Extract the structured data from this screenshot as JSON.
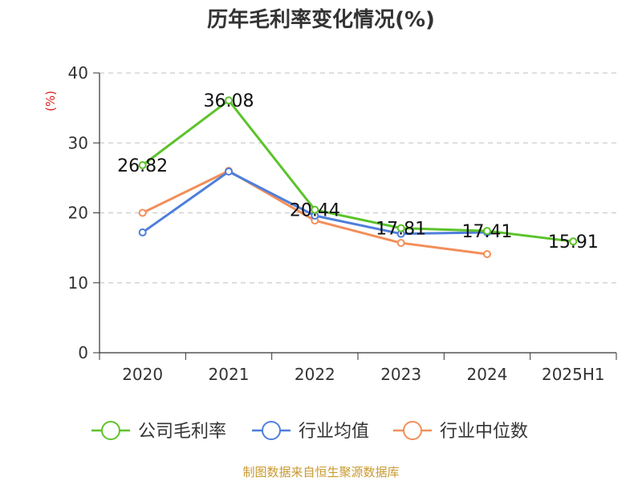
{
  "title": "历年毛利率变化情况(%)",
  "footer": "制图数据来自恒生聚源数据库",
  "chart_data": {
    "type": "line",
    "title": "历年毛利率变化情况(%)",
    "ylabel": "(%)",
    "xlabel": "",
    "categories": [
      "2020",
      "2021",
      "2022",
      "2023",
      "2024",
      "2025H1"
    ],
    "ylim": [
      0,
      40
    ],
    "yticks": [
      0,
      10,
      20,
      30,
      40
    ],
    "grid": true,
    "legend_position": "bottom",
    "series": [
      {
        "name": "公司毛利率",
        "color": "#5cc32b",
        "values": [
          26.82,
          36.08,
          20.44,
          17.81,
          17.41,
          15.91
        ],
        "labels": [
          "26.82",
          "36.08",
          "20.44",
          "17.81",
          "17.41",
          "15.91"
        ]
      },
      {
        "name": "行业均值",
        "color": "#4f7fdb",
        "values": [
          17.2,
          25.9,
          19.6,
          17.0,
          17.2,
          null
        ]
      },
      {
        "name": "行业中位数",
        "color": "#f28f5a",
        "values": [
          20.0,
          26.0,
          18.9,
          15.7,
          14.1,
          null
        ]
      }
    ]
  }
}
